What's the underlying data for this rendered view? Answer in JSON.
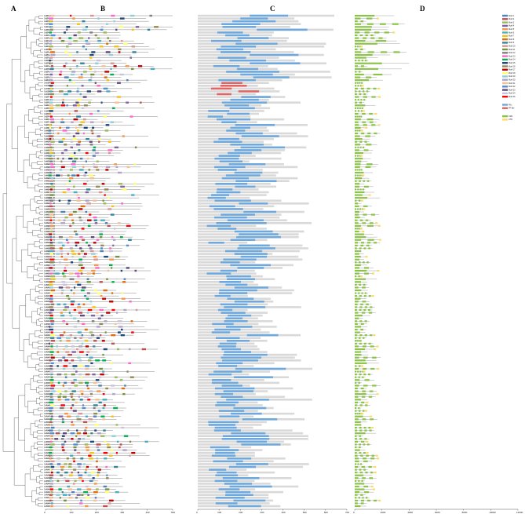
{
  "panels": {
    "a": "A",
    "b": "B",
    "c": "C",
    "d": "D"
  },
  "gene_labels": [
    "GrZFL-9",
    "GrZFL-10",
    "GrZFL-13",
    "GrZFL-11",
    "GrZFL-12",
    "GrZFL-15",
    "GrZFL-5",
    "GrZFL-14",
    "GrZFL-16",
    "GrZFL-8",
    "GrZFL-6",
    "GrZFL-2",
    "GrZFL-4",
    "GrZFL-1",
    "GrZFL-3",
    "GrZFL-7",
    "GrZFL-17",
    "GrZFL-18",
    "GrZFL-19",
    "GrZFL-20",
    "GrZFL-21",
    "GrZFL-22",
    "GrZFL-23",
    "GrZFL-24",
    "GrCDRL-1",
    "GrCDRL-2",
    "GrCDRL-3",
    "GrCDRL-4",
    "GrCDRL-5",
    "GrZIF-1",
    "GrZIF-2",
    "GrZIF-3",
    "GrZIF-4",
    "GrZIF-5",
    "GrZIF-6",
    "GrZIF-7",
    "GrZIF-8",
    "GrZIF-9",
    "GrZIF-10",
    "GrZIF-11",
    "GrMEKK-1",
    "GrMEKK-2",
    "GrMEKK-3",
    "GrMEKK-4",
    "GrMEKK-5",
    "GrMEKK-6",
    "GrMEKK-7",
    "GrMEKK-8",
    "GrMEKK-9",
    "GrMEKK-10",
    "GrMEKK-11",
    "GrMEKK-12",
    "GrMEKK-13",
    "GrMEKK-14",
    "GrMEKK-15",
    "GrMEKK-16",
    "GrMEKK-17",
    "GrMEKK-18",
    "GrMEKK-19",
    "GrMEKK-20",
    "GrMEKK-21",
    "GrMEKK-22",
    "GrMEKK-23",
    "GrMEKK-24",
    "GrMEKK-25",
    "GrMEKK-26",
    "GrMEKK-27",
    "GrMEKK-28",
    "GrMEKK-29",
    "GrMEKK-30",
    "GrMEKK-31",
    "GrMEKK-32",
    "GrMEKK-33",
    "GrMEKK-34",
    "GrMEKK-35",
    "GrMEKK-36",
    "GrMEKK-37",
    "GrMEKK-38",
    "GrMEKK-39",
    "GrMEKK-40",
    "GrMEKK-41",
    "GrMEKK-42",
    "GrMEKK-43",
    "GrMEKK-44",
    "GrMEKK-45",
    "GrMEKK-46",
    "GrMEKK-47",
    "GrMEKK-48",
    "GrMEKK-49",
    "GrMEKK-50",
    "GrMEKK-51",
    "GrMEKK-52",
    "GrMEKK-53",
    "GrMEKK-54",
    "GrMEKK-55",
    "GrMEKK-56",
    "GrRAF-1",
    "GrRAF-2",
    "GrRAF-3",
    "GrRAF-4",
    "GrRAF-5",
    "GrRAF-6",
    "GrRAF-7",
    "GrRAF-8",
    "GrRAF-9",
    "GrRAF-10",
    "GrRAF-11",
    "GrRAF-12",
    "GrRAF-13",
    "GrRAF-14",
    "GrRAF-15",
    "GrRAF-16",
    "GrRAF-17",
    "GrRAF-18",
    "GrRAF-19",
    "GrRAF-20",
    "GrRAF-21",
    "GrRAF-22",
    "GrRAF-23",
    "GrRAF-24",
    "GrRAF-25",
    "GrRAF-26",
    "GrRAF-27",
    "GrRAF-28",
    "GrRAF-29",
    "GrRAF-30",
    "GrRAF-31",
    "GrRAF-32",
    "GrRAF-33",
    "GrRAF-34",
    "GrRAF-35",
    "GrRAF-36",
    "GrRAF-37",
    "GrRAF-38",
    "GrRAF-39",
    "GrRAF-40",
    "GrRAF-41",
    "GrRAF-42",
    "GrRAF-43",
    "GrRAF-44",
    "GrRAF-45",
    "GrRAF-46",
    "GrRAF-47",
    "GrRAF-48",
    "GrRAF-49",
    "GrRAF-50",
    "GrRAF-51",
    "GrRAF-52",
    "GrRAF-53",
    "GrRAF-54",
    "GrRAF-55",
    "GrRAF-56",
    "GrRAF-57",
    "GrRAF-58",
    "GrRAF-59",
    "GrRAF-60",
    "GrRAF-61",
    "GrRAF-62",
    "GrRAF-63",
    "GrRAF-64",
    "GrRAF-65",
    "GrRAF-66",
    "GrRAF-67",
    "GrRAF-68",
    "GrRAF-69",
    "GrRAF-70",
    "GrRAF-71",
    "GrRAF-72",
    "GrRAF-73",
    "GrRAF-74",
    "GrRAF-75",
    "GrRAF-76",
    "GrRAF-77",
    "GrRAF-78",
    "GrRAF-79",
    "GrRAF-80"
  ],
  "motif_scale": {
    "ticks": [
      "0",
      "100",
      "200",
      "300",
      "400",
      "500"
    ]
  },
  "domain_scale": {
    "ticks": [
      "0",
      "100",
      "200",
      "300",
      "400",
      "500",
      "600",
      "700"
    ]
  },
  "gene_scale": {
    "ticks": [
      "0",
      "2000",
      "4000",
      "6000",
      "8000",
      "10000",
      "12000"
    ]
  },
  "motif_legend": [
    "Motif 1",
    "Motif 2",
    "Motif 3",
    "Motif 4",
    "Motif 5",
    "Motif 6",
    "Motif 7",
    "Motif 8",
    "Motif 9",
    "Motif 10",
    "Motif 11",
    "Motif 12",
    "Motif 13",
    "Motif 14",
    "Motif 15",
    "Motif 16",
    "Motif 17",
    "Motif 18",
    "Motif 19",
    "Motif 20",
    "Motif 21",
    "Motif 22",
    "Motif 23",
    "Motif 24",
    "Motif 25"
  ],
  "domain_legend": [
    "PKc",
    "PF-like"
  ],
  "structure_legend": [
    "CDS",
    "UTR"
  ],
  "colors": {
    "motif_palette": [
      "#4f81bd",
      "#c0504d",
      "#9bbb59",
      "#8064a2",
      "#f79646",
      "#4bacc6",
      "#f2c314",
      "#e46c0a",
      "#31859b",
      "#d99694",
      "#76923c",
      "#7f7f7f",
      "#ff66cc",
      "#00b050",
      "#1f497d",
      "#948a54",
      "#c00000",
      "#ffff66",
      "#92cddc",
      "#b3a2c7",
      "#fabf8f",
      "#538dd5",
      "#60497a",
      "#ccc1da",
      "#ff0000"
    ],
    "domain_pkc": "#6fa8dc",
    "domain_pf": "#e06666",
    "domain_bg": "#d9d9d9",
    "cds": "#8bc34a",
    "utr": "#ffd966",
    "intron": "#666666",
    "tree": "#333333"
  }
}
